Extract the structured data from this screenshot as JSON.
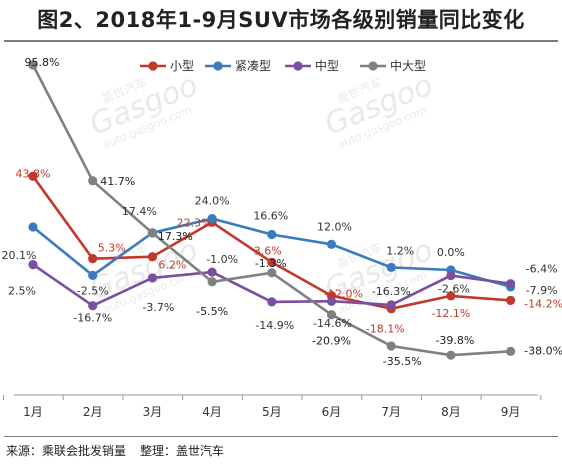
{
  "title": "图2、2018年1-9月SUV市场各级别销量同比变化",
  "footer": {
    "source": "来源：乘联会批发销量",
    "editor": "整理：盖世汽车"
  },
  "watermark": {
    "brand": "盖世汽车",
    "logo": "Gasgoo",
    "url": "auto.gasgoo.com"
  },
  "chart_data": {
    "type": "line",
    "categories": [
      "1月",
      "2月",
      "3月",
      "4月",
      "5月",
      "6月",
      "7月",
      "8月",
      "9月"
    ],
    "series": [
      {
        "name": "小型",
        "color": "#c0392b",
        "values": [
          43.8,
          5.3,
          6.2,
          22.3,
          3.6,
          -12.0,
          -18.1,
          -12.1,
          -14.2
        ]
      },
      {
        "name": "紧凑型",
        "color": "#3a7bbf",
        "values": [
          20.1,
          -2.5,
          17.4,
          24.0,
          16.6,
          12.0,
          1.2,
          0.0,
          -7.9
        ]
      },
      {
        "name": "中型",
        "color": "#7b4fa0",
        "values": [
          2.5,
          -16.7,
          -3.7,
          -1.0,
          -14.9,
          -14.6,
          -16.3,
          -2.6,
          -6.4
        ]
      },
      {
        "name": "中大型",
        "color": "#808080",
        "values": [
          95.8,
          41.7,
          17.3,
          -5.5,
          -1.3,
          -20.9,
          -35.5,
          -39.8,
          -38.0
        ]
      }
    ],
    "data_labels": [
      [
        "43.8%",
        "5.3%",
        "6.2%",
        "22.3%",
        "3.6%",
        "-12.0%",
        "-18.1%",
        "-12.1%",
        "-14.2%"
      ],
      [
        "20.1%",
        "-2.5%",
        "17.4%",
        "24.0%",
        "16.6%",
        "12.0%",
        "1.2%",
        "0.0%",
        "-7.9%"
      ],
      [
        "2.5%",
        "-16.7%",
        "-3.7%",
        "-1.0%",
        "-14.9%",
        "-14.6%",
        "-16.3%",
        "-2.6%",
        "-6.4%"
      ],
      [
        "95.8%",
        "41.7%",
        "17.3%",
        "-5.5%",
        "-1.3%",
        "-20.9%",
        "-35.5%",
        "-39.8%",
        "-38.0%"
      ]
    ],
    "legend_position": "top",
    "grid": false,
    "ylim": [
      -45,
      100
    ]
  }
}
